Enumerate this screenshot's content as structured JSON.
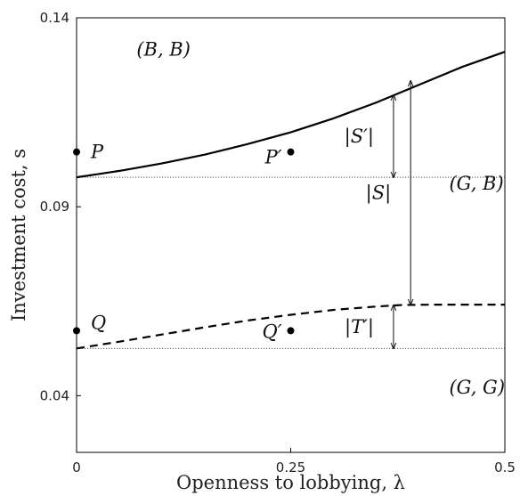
{
  "chart_data": {
    "type": "line",
    "xlabel": "Openness to lobbying, λ",
    "ylabel": "Investment cost, s",
    "xlim": [
      0,
      0.5
    ],
    "ylim": [
      0.025,
      0.14
    ],
    "xticks": [
      "0",
      "0.25",
      "0.5"
    ],
    "yticks": [
      "0.04",
      "0.09",
      "0.14"
    ],
    "grid": false,
    "series": [
      {
        "style": "solid",
        "x": [
          0,
          0.05,
          0.1,
          0.15,
          0.2,
          0.25,
          0.3,
          0.35,
          0.4,
          0.45,
          0.5
        ],
        "y": [
          0.0978,
          0.0995,
          0.1015,
          0.1038,
          0.1066,
          0.1097,
          0.1134,
          0.1176,
          0.1223,
          0.127,
          0.131
        ]
      },
      {
        "style": "dashed",
        "x": [
          0,
          0.05,
          0.1,
          0.15,
          0.2,
          0.25,
          0.3,
          0.35,
          0.38,
          0.42,
          0.5
        ],
        "y": [
          0.0525,
          0.0543,
          0.0562,
          0.0581,
          0.0599,
          0.0614,
          0.0627,
          0.0636,
          0.064,
          0.0641,
          0.0641
        ]
      }
    ],
    "reference_lines": [
      {
        "style": "dotted",
        "y": 0.0978
      },
      {
        "style": "dotted",
        "y": 0.0525
      }
    ],
    "points": [
      {
        "label": "P",
        "x": 0,
        "y": 0.1045
      },
      {
        "label": "P′",
        "x": 0.25,
        "y": 0.1045
      },
      {
        "label": "Q",
        "x": 0,
        "y": 0.0572
      },
      {
        "label": "Q′",
        "x": 0.25,
        "y": 0.0572
      }
    ],
    "annotations": [
      {
        "label": "|S′|",
        "x": 0.37,
        "y_from": 0.0978,
        "y_to": 0.1196
      },
      {
        "label": "|S|",
        "x": 0.39,
        "y_from": 0.0641,
        "y_to": 0.1233
      },
      {
        "label": "|T′|",
        "x": 0.37,
        "y_from": 0.0525,
        "y_to": 0.064
      }
    ],
    "regions": [
      {
        "label": "(B, B)",
        "x": 0.07,
        "y": 0.13
      },
      {
        "label": "(G, B)",
        "x": 0.435,
        "y": 0.0945
      },
      {
        "label": "(G, G)",
        "x": 0.435,
        "y": 0.0405
      }
    ]
  }
}
